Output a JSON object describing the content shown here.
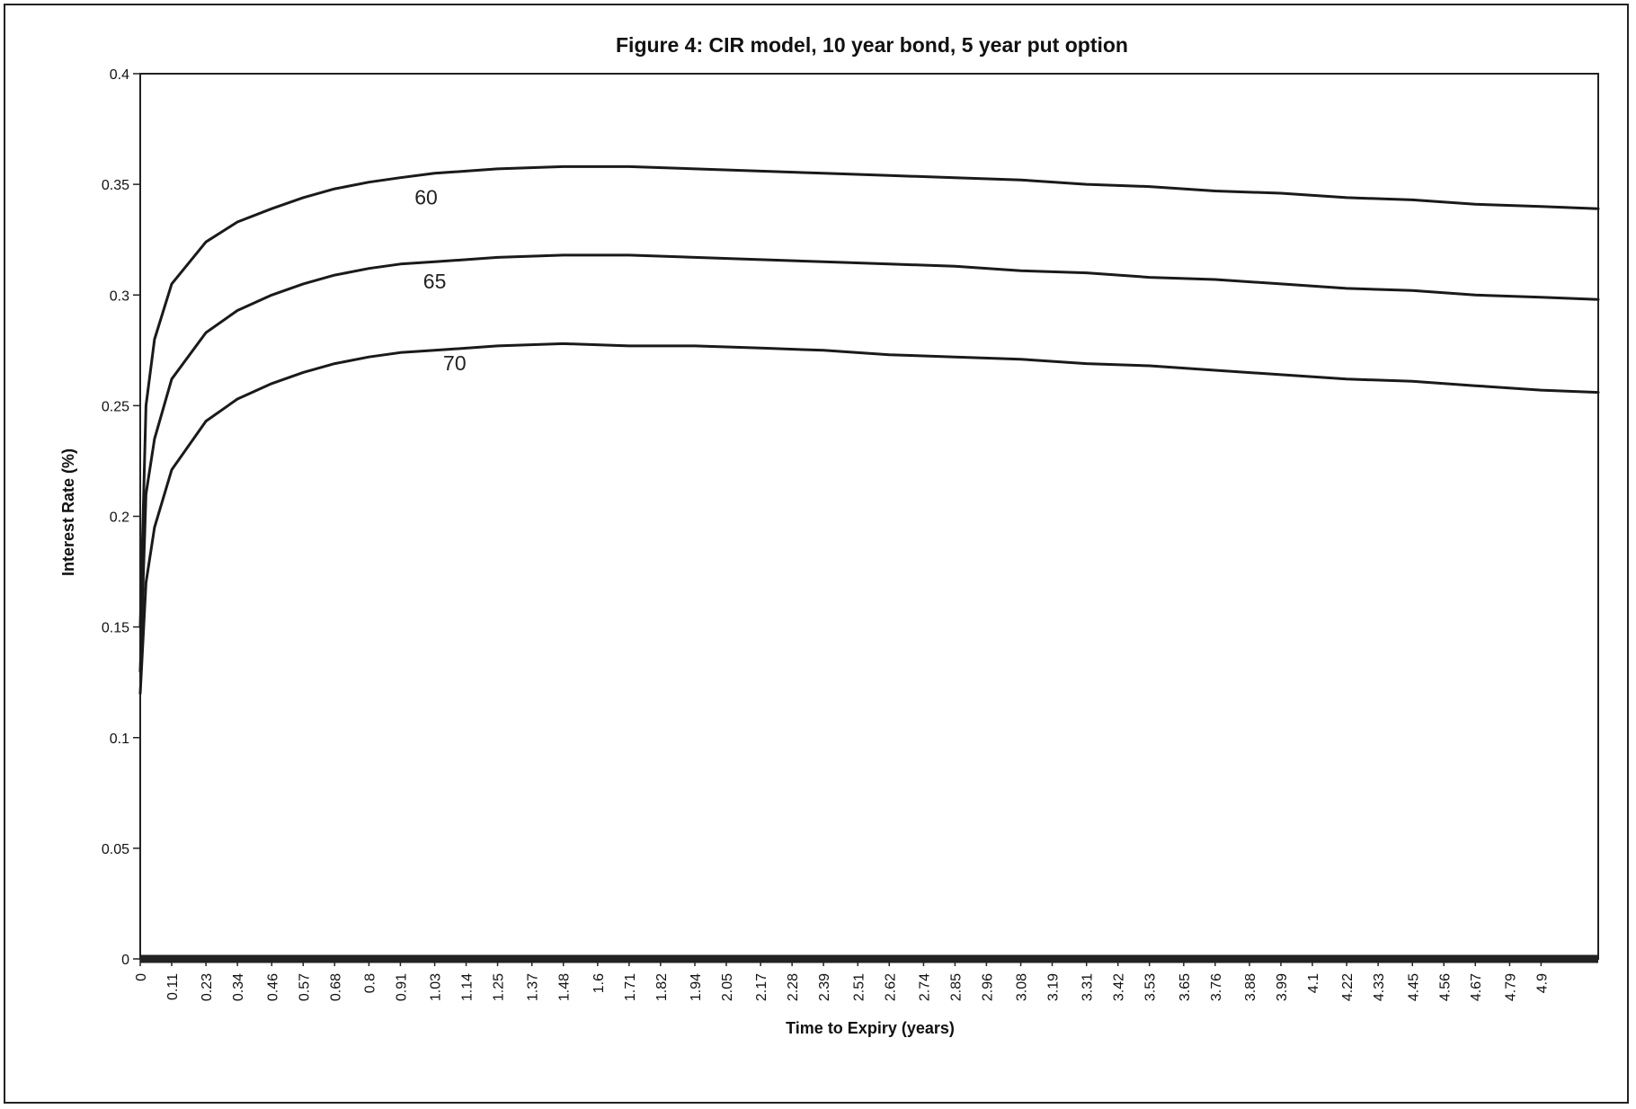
{
  "chart_data": {
    "type": "line",
    "title": "Figure 4: CIR model, 10 year bond, 5 year put option",
    "xlabel": "Time to Expiry (years)",
    "ylabel": "Interest Rate (%)",
    "xlim": [
      0,
      5.1
    ],
    "ylim": [
      0,
      0.4
    ],
    "y_ticks": [
      "0",
      "0.05",
      "0.1",
      "0.15",
      "0.2",
      "0.25",
      "0.3",
      "0.35",
      "0.4"
    ],
    "x_ticks": [
      "0",
      "0.11",
      "0.23",
      "0.34",
      "0.46",
      "0.57",
      "0.68",
      "0.8",
      "0.91",
      "1.03",
      "1.14",
      "1.25",
      "1.37",
      "1.48",
      "1.6",
      "1.71",
      "1.82",
      "1.94",
      "2.05",
      "2.17",
      "2.28",
      "2.39",
      "2.51",
      "2.62",
      "2.74",
      "2.85",
      "2.96",
      "3.08",
      "3.19",
      "3.31",
      "3.42",
      "3.53",
      "3.65",
      "3.76",
      "3.88",
      "3.99",
      "4.1",
      "4.22",
      "4.33",
      "4.45",
      "4.56",
      "4.67",
      "4.79",
      "4.9"
    ],
    "grid": false,
    "legend": "none",
    "series": [
      {
        "name": "60",
        "x": [
          0,
          0.02,
          0.05,
          0.11,
          0.23,
          0.34,
          0.46,
          0.57,
          0.68,
          0.8,
          0.91,
          1.03,
          1.25,
          1.48,
          1.71,
          1.94,
          2.17,
          2.39,
          2.62,
          2.85,
          3.08,
          3.31,
          3.53,
          3.76,
          3.99,
          4.22,
          4.45,
          4.67,
          4.9,
          5.1
        ],
        "y": [
          0.15,
          0.25,
          0.28,
          0.305,
          0.324,
          0.333,
          0.339,
          0.344,
          0.348,
          0.351,
          0.353,
          0.355,
          0.357,
          0.358,
          0.358,
          0.357,
          0.356,
          0.355,
          0.354,
          0.353,
          0.352,
          0.35,
          0.349,
          0.347,
          0.346,
          0.344,
          0.343,
          0.341,
          0.34,
          0.339
        ]
      },
      {
        "name": "65",
        "x": [
          0,
          0.02,
          0.05,
          0.11,
          0.23,
          0.34,
          0.46,
          0.57,
          0.68,
          0.8,
          0.91,
          1.03,
          1.25,
          1.48,
          1.71,
          1.94,
          2.17,
          2.39,
          2.62,
          2.85,
          3.08,
          3.31,
          3.53,
          3.76,
          3.99,
          4.22,
          4.45,
          4.67,
          4.9,
          5.1
        ],
        "y": [
          0.13,
          0.21,
          0.235,
          0.262,
          0.283,
          0.293,
          0.3,
          0.305,
          0.309,
          0.312,
          0.314,
          0.315,
          0.317,
          0.318,
          0.318,
          0.317,
          0.316,
          0.315,
          0.314,
          0.313,
          0.311,
          0.31,
          0.308,
          0.307,
          0.305,
          0.303,
          0.302,
          0.3,
          0.299,
          0.298
        ]
      },
      {
        "name": "70",
        "x": [
          0,
          0.02,
          0.05,
          0.11,
          0.23,
          0.34,
          0.46,
          0.57,
          0.68,
          0.8,
          0.91,
          1.03,
          1.25,
          1.48,
          1.71,
          1.94,
          2.17,
          2.39,
          2.62,
          2.85,
          3.08,
          3.31,
          3.53,
          3.76,
          3.99,
          4.22,
          4.45,
          4.67,
          4.9,
          5.1
        ],
        "y": [
          0.12,
          0.17,
          0.195,
          0.221,
          0.243,
          0.253,
          0.26,
          0.265,
          0.269,
          0.272,
          0.274,
          0.275,
          0.277,
          0.278,
          0.277,
          0.277,
          0.276,
          0.275,
          0.273,
          0.272,
          0.271,
          0.269,
          0.268,
          0.266,
          0.264,
          0.262,
          0.261,
          0.259,
          0.257,
          0.256
        ]
      }
    ],
    "series_labels": [
      {
        "text": "60",
        "x": 1.0,
        "y": 0.341
      },
      {
        "text": "65",
        "x": 1.03,
        "y": 0.303
      },
      {
        "text": "70",
        "x": 1.1,
        "y": 0.266
      }
    ]
  }
}
